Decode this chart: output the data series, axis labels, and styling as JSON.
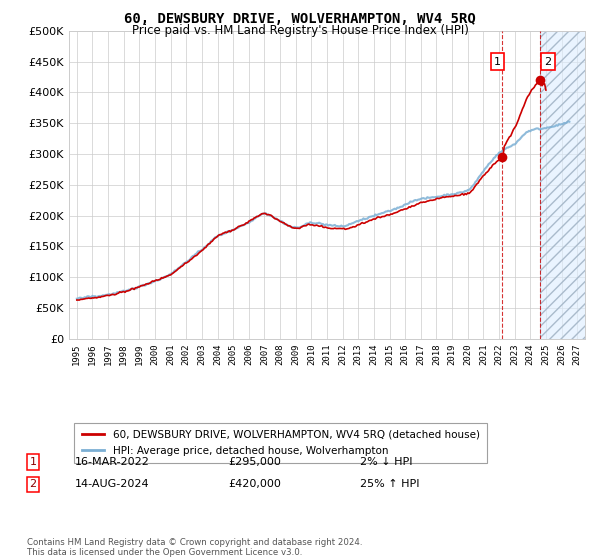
{
  "title": "60, DEWSBURY DRIVE, WOLVERHAMPTON, WV4 5RQ",
  "subtitle": "Price paid vs. HM Land Registry's House Price Index (HPI)",
  "legend_line1": "60, DEWSBURY DRIVE, WOLVERHAMPTON, WV4 5RQ (detached house)",
  "legend_line2": "HPI: Average price, detached house, Wolverhampton",
  "footer": "Contains HM Land Registry data © Crown copyright and database right 2024.\nThis data is licensed under the Open Government Licence v3.0.",
  "annotation1_date": "16-MAR-2022",
  "annotation1_price": "£295,000",
  "annotation1_pct": "2% ↓ HPI",
  "annotation2_date": "14-AUG-2024",
  "annotation2_price": "£420,000",
  "annotation2_pct": "25% ↑ HPI",
  "hpi_color": "#7bafd4",
  "price_color": "#cc0000",
  "marker1_x_year": 2022.21,
  "marker1_y": 295000,
  "marker2_x_year": 2024.62,
  "marker2_y": 420000,
  "ylim": [
    0,
    500000
  ],
  "yticks": [
    0,
    50000,
    100000,
    150000,
    200000,
    250000,
    300000,
    350000,
    400000,
    450000,
    500000
  ],
  "background_color": "#ffffff",
  "grid_color": "#cccccc",
  "hatch_region_start": 2024.62,
  "hatch_region_end": 2027.5,
  "xmin": 1994.5,
  "xmax": 2027.5
}
